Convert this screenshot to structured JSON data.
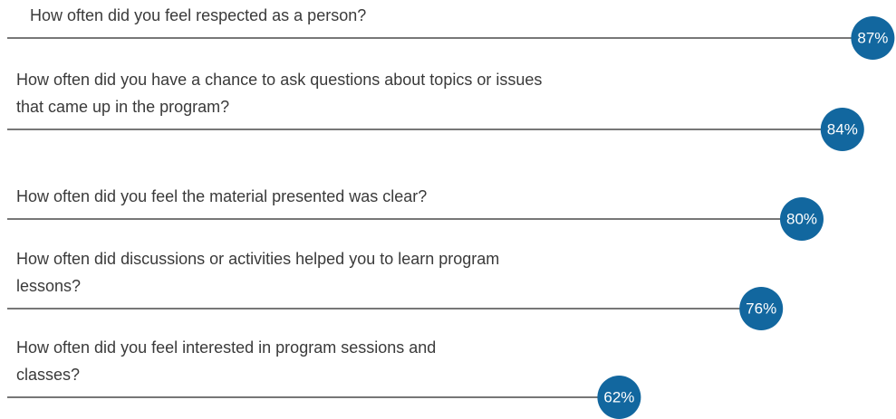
{
  "chart_data": {
    "type": "lollipop",
    "categories": [
      [
        "How often did you feel respected as a person?"
      ],
      [
        "How often did you have a chance to ask questions about topics or issues",
        "that came up in the program?"
      ],
      [
        "How often did you feel the material presented was clear?"
      ],
      [
        "How often did discussions or activities helped you to learn program",
        "lessons?"
      ],
      [
        "How often did you feel interested in program sessions and",
        "classes?"
      ]
    ],
    "values": [
      87,
      84,
      80,
      76,
      62
    ],
    "value_labels": [
      "87%",
      "84%",
      "80%",
      "76%",
      "62%"
    ],
    "xlim": [
      0,
      100
    ],
    "color": "#12679f",
    "line_color": "#4a4a4a"
  }
}
